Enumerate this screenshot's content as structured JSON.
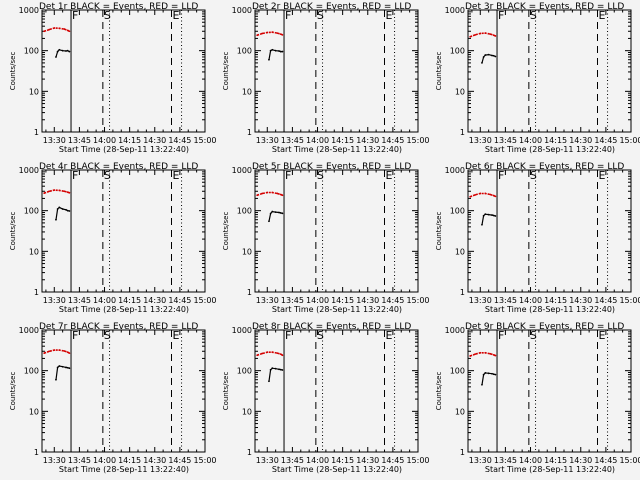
{
  "colors": {
    "background": "#f3f3f3",
    "events": "#000000",
    "lld": "#d40000",
    "axes": "#000000"
  },
  "chart_data": [
    {
      "type": "line",
      "title": "Det 1r BLACK = Events, RED = LLD",
      "xlabel": "Start Time (28-Sep-11 13:22:40)",
      "ylabel": "Counts/sec",
      "yscale": "log",
      "ylim": [
        1,
        1000
      ],
      "xlim": [
        "13:22:40",
        "15:00:00"
      ],
      "x_ticks": [
        "13:30",
        "13:45",
        "14:00",
        "14:15",
        "14:30",
        "14:45",
        "15:00"
      ],
      "y_ticks": [
        "1",
        "10",
        "100",
        "1000"
      ],
      "markers": [
        {
          "label": "F",
          "time": "13:40",
          "style": "solid"
        },
        {
          "label": "S",
          "time": "13:59",
          "style": "dashed"
        },
        {
          "label": "E",
          "time": "14:40",
          "style": "dashed"
        }
      ],
      "dotted_lines": [
        "14:03",
        "14:46"
      ],
      "series": [
        {
          "name": "RED = LLD",
          "color": "#d40000",
          "x": [
            "13:24",
            "13:27",
            "13:30",
            "13:33",
            "13:36",
            "13:38",
            "13:39"
          ],
          "y": [
            300,
            330,
            360,
            355,
            340,
            315,
            300
          ]
        },
        {
          "name": "BLACK = Events",
          "color": "#000000",
          "x": [
            "13:31",
            "13:32",
            "13:33",
            "13:35",
            "13:37",
            "13:38",
            "13:39"
          ],
          "y": [
            70,
            95,
            105,
            100,
            98,
            100,
            95
          ]
        }
      ]
    },
    {
      "type": "line",
      "title": "Det 2r BLACK = Events, RED = LLD",
      "xlabel": "Start Time (28-Sep-11 13:22:40)",
      "ylabel": "Counts/sec",
      "yscale": "log",
      "ylim": [
        1,
        1000
      ],
      "xlim": [
        "13:22:40",
        "15:00:00"
      ],
      "x_ticks": [
        "13:30",
        "13:45",
        "14:00",
        "14:15",
        "14:30",
        "14:45",
        "15:00"
      ],
      "y_ticks": [
        "1",
        "10",
        "100",
        "1000"
      ],
      "markers": [
        {
          "label": "F",
          "time": "13:40",
          "style": "solid"
        },
        {
          "label": "S",
          "time": "13:59",
          "style": "dashed"
        },
        {
          "label": "E",
          "time": "14:40",
          "style": "dashed"
        }
      ],
      "dotted_lines": [
        "14:03",
        "14:46"
      ],
      "series": [
        {
          "name": "RED = LLD",
          "color": "#d40000",
          "x": [
            "13:24",
            "13:27",
            "13:30",
            "13:33",
            "13:36",
            "13:38",
            "13:39"
          ],
          "y": [
            240,
            265,
            280,
            285,
            270,
            255,
            245
          ]
        },
        {
          "name": "BLACK = Events",
          "color": "#000000",
          "x": [
            "13:31",
            "13:32",
            "13:33",
            "13:35",
            "13:37",
            "13:38",
            "13:39"
          ],
          "y": [
            60,
            100,
            105,
            100,
            98,
            95,
            95
          ]
        }
      ]
    },
    {
      "type": "line",
      "title": "Det 3r BLACK = Events, RED = LLD",
      "xlabel": "Start Time (28-Sep-11 13:22:40)",
      "ylabel": "Counts/sec",
      "yscale": "log",
      "ylim": [
        1,
        1000
      ],
      "xlim": [
        "13:22:40",
        "15:00:00"
      ],
      "x_ticks": [
        "13:30",
        "13:45",
        "14:00",
        "14:15",
        "14:30",
        "14:45",
        "15:00"
      ],
      "y_ticks": [
        "1",
        "10",
        "100",
        "1000"
      ],
      "markers": [
        {
          "label": "F",
          "time": "13:40",
          "style": "solid"
        },
        {
          "label": "S",
          "time": "13:59",
          "style": "dashed"
        },
        {
          "label": "E",
          "time": "14:40",
          "style": "dashed"
        }
      ],
      "dotted_lines": [
        "14:03",
        "14:46"
      ],
      "series": [
        {
          "name": "RED = LLD",
          "color": "#d40000",
          "x": [
            "13:24",
            "13:27",
            "13:30",
            "13:33",
            "13:36",
            "13:38",
            "13:39"
          ],
          "y": [
            220,
            245,
            265,
            270,
            255,
            240,
            230
          ]
        },
        {
          "name": "BLACK = Events",
          "color": "#000000",
          "x": [
            "13:31",
            "13:32",
            "13:33",
            "13:35",
            "13:37",
            "13:38",
            "13:39"
          ],
          "y": [
            50,
            70,
            78,
            80,
            76,
            75,
            72
          ]
        }
      ]
    },
    {
      "type": "line",
      "title": "Det 4r BLACK = Events, RED = LLD",
      "xlabel": "Start Time (28-Sep-11 13:22:40)",
      "ylabel": "Counts/sec",
      "yscale": "log",
      "ylim": [
        1,
        1000
      ],
      "xlim": [
        "13:22:40",
        "15:00:00"
      ],
      "x_ticks": [
        "13:30",
        "13:45",
        "14:00",
        "14:15",
        "14:30",
        "14:45",
        "15:00"
      ],
      "y_ticks": [
        "1",
        "10",
        "100",
        "1000"
      ],
      "markers": [
        {
          "label": "F",
          "time": "13:40",
          "style": "solid"
        },
        {
          "label": "S",
          "time": "13:59",
          "style": "dashed"
        },
        {
          "label": "E",
          "time": "14:40",
          "style": "dashed"
        }
      ],
      "dotted_lines": [
        "14:03",
        "14:46"
      ],
      "series": [
        {
          "name": "RED = LLD",
          "color": "#d40000",
          "x": [
            "13:24",
            "13:27",
            "13:30",
            "13:33",
            "13:36",
            "13:38",
            "13:39"
          ],
          "y": [
            270,
            300,
            320,
            315,
            300,
            285,
            275
          ]
        },
        {
          "name": "BLACK = Events",
          "color": "#000000",
          "x": [
            "13:31",
            "13:32",
            "13:33",
            "13:35",
            "13:37",
            "13:38",
            "13:39"
          ],
          "y": [
            60,
            110,
            120,
            110,
            105,
            100,
            98
          ]
        }
      ]
    },
    {
      "type": "line",
      "title": "Det 5r BLACK = Events, RED = LLD",
      "xlabel": "Start Time (28-Sep-11 13:22:40)",
      "ylabel": "Counts/sec",
      "yscale": "log",
      "ylim": [
        1,
        1000
      ],
      "xlim": [
        "13:22:40",
        "15:00:00"
      ],
      "x_ticks": [
        "13:30",
        "13:45",
        "14:00",
        "14:15",
        "14:30",
        "14:45",
        "15:00"
      ],
      "y_ticks": [
        "1",
        "10",
        "100",
        "1000"
      ],
      "markers": [
        {
          "label": "F",
          "time": "13:40",
          "style": "solid"
        },
        {
          "label": "S",
          "time": "13:59",
          "style": "dashed"
        },
        {
          "label": "E",
          "time": "14:40",
          "style": "dashed"
        }
      ],
      "dotted_lines": [
        "14:03",
        "14:46"
      ],
      "series": [
        {
          "name": "RED = LLD",
          "color": "#d40000",
          "x": [
            "13:24",
            "13:27",
            "13:30",
            "13:33",
            "13:36",
            "13:38",
            "13:39"
          ],
          "y": [
            240,
            265,
            280,
            280,
            265,
            250,
            240
          ]
        },
        {
          "name": "BLACK = Events",
          "color": "#000000",
          "x": [
            "13:31",
            "13:32",
            "13:33",
            "13:35",
            "13:37",
            "13:38",
            "13:39"
          ],
          "y": [
            55,
            85,
            95,
            92,
            90,
            88,
            86
          ]
        }
      ]
    },
    {
      "type": "line",
      "title": "Det 6r BLACK = Events, RED = LLD",
      "xlabel": "Start Time (28-Sep-11 13:22:40)",
      "ylabel": "Counts/sec",
      "yscale": "log",
      "ylim": [
        1,
        1000
      ],
      "xlim": [
        "13:22:40",
        "15:00:00"
      ],
      "x_ticks": [
        "13:30",
        "13:45",
        "14:00",
        "14:15",
        "14:30",
        "14:45",
        "15:00"
      ],
      "y_ticks": [
        "1",
        "10",
        "100",
        "1000"
      ],
      "markers": [
        {
          "label": "F",
          "time": "13:40",
          "style": "solid"
        },
        {
          "label": "S",
          "time": "13:59",
          "style": "dashed"
        },
        {
          "label": "E",
          "time": "14:40",
          "style": "dashed"
        }
      ],
      "dotted_lines": [
        "14:03",
        "14:46"
      ],
      "series": [
        {
          "name": "RED = LLD",
          "color": "#d40000",
          "x": [
            "13:24",
            "13:27",
            "13:30",
            "13:33",
            "13:36",
            "13:38",
            "13:39"
          ],
          "y": [
            220,
            245,
            265,
            265,
            250,
            235,
            225
          ]
        },
        {
          "name": "BLACK = Events",
          "color": "#000000",
          "x": [
            "13:31",
            "13:32",
            "13:33",
            "13:35",
            "13:37",
            "13:38",
            "13:39"
          ],
          "y": [
            45,
            75,
            82,
            80,
            78,
            76,
            74
          ]
        }
      ]
    },
    {
      "type": "line",
      "title": "Det 7r BLACK = Events, RED = LLD",
      "xlabel": "Start Time (28-Sep-11 13:22:40)",
      "ylabel": "Counts/sec",
      "yscale": "log",
      "ylim": [
        1,
        1000
      ],
      "xlim": [
        "13:22:40",
        "15:00:00"
      ],
      "x_ticks": [
        "13:30",
        "13:45",
        "14:00",
        "14:15",
        "14:30",
        "14:45",
        "15:00"
      ],
      "y_ticks": [
        "1",
        "10",
        "100",
        "1000"
      ],
      "markers": [
        {
          "label": "F",
          "time": "13:40",
          "style": "solid"
        },
        {
          "label": "S",
          "time": "13:59",
          "style": "dashed"
        },
        {
          "label": "E",
          "time": "14:40",
          "style": "dashed"
        }
      ],
      "dotted_lines": [
        "14:03",
        "14:46"
      ],
      "series": [
        {
          "name": "RED = LLD",
          "color": "#d40000",
          "x": [
            "13:24",
            "13:27",
            "13:30",
            "13:33",
            "13:36",
            "13:38",
            "13:39"
          ],
          "y": [
            270,
            300,
            320,
            320,
            305,
            285,
            270
          ]
        },
        {
          "name": "BLACK = Events",
          "color": "#000000",
          "x": [
            "13:31",
            "13:32",
            "13:33",
            "13:35",
            "13:37",
            "13:38",
            "13:39"
          ],
          "y": [
            60,
            120,
            130,
            125,
            120,
            118,
            115
          ]
        }
      ]
    },
    {
      "type": "line",
      "title": "Det 8r BLACK = Events, RED = LLD",
      "xlabel": "Start Time (28-Sep-11 13:22:40)",
      "ylabel": "Counts/sec",
      "yscale": "log",
      "ylim": [
        1,
        1000
      ],
      "xlim": [
        "13:22:40",
        "15:00:00"
      ],
      "x_ticks": [
        "13:30",
        "13:45",
        "14:00",
        "14:15",
        "14:30",
        "14:45",
        "15:00"
      ],
      "y_ticks": [
        "1",
        "10",
        "100",
        "1000"
      ],
      "markers": [
        {
          "label": "F",
          "time": "13:40",
          "style": "solid"
        },
        {
          "label": "S",
          "time": "13:59",
          "style": "dashed"
        },
        {
          "label": "E",
          "time": "14:40",
          "style": "dashed"
        }
      ],
      "dotted_lines": [
        "14:03",
        "14:46"
      ],
      "series": [
        {
          "name": "RED = LLD",
          "color": "#d40000",
          "x": [
            "13:24",
            "13:27",
            "13:30",
            "13:33",
            "13:36",
            "13:38",
            "13:39"
          ],
          "y": [
            240,
            265,
            285,
            285,
            270,
            255,
            240
          ]
        },
        {
          "name": "BLACK = Events",
          "color": "#000000",
          "x": [
            "13:31",
            "13:32",
            "13:33",
            "13:35",
            "13:37",
            "13:38",
            "13:39"
          ],
          "y": [
            55,
            105,
            115,
            112,
            108,
            106,
            104
          ]
        }
      ]
    },
    {
      "type": "line",
      "title": "Det 9r BLACK = Events, RED = LLD",
      "xlabel": "Start Time (28-Sep-11 13:22:40)",
      "ylabel": "Counts/sec",
      "yscale": "log",
      "ylim": [
        1,
        1000
      ],
      "xlim": [
        "13:22:40",
        "15:00:00"
      ],
      "x_ticks": [
        "13:30",
        "13:45",
        "14:00",
        "14:15",
        "14:30",
        "14:45",
        "15:00"
      ],
      "y_ticks": [
        "1",
        "10",
        "100",
        "1000"
      ],
      "markers": [
        {
          "label": "F",
          "time": "13:40",
          "style": "solid"
        },
        {
          "label": "S",
          "time": "13:59",
          "style": "dashed"
        },
        {
          "label": "E",
          "time": "14:40",
          "style": "dashed"
        }
      ],
      "dotted_lines": [
        "14:03",
        "14:46"
      ],
      "series": [
        {
          "name": "RED = LLD",
          "color": "#d40000",
          "x": [
            "13:24",
            "13:27",
            "13:30",
            "13:33",
            "13:36",
            "13:38",
            "13:39"
          ],
          "y": [
            230,
            255,
            275,
            275,
            260,
            245,
            235
          ]
        },
        {
          "name": "BLACK = Events",
          "color": "#000000",
          "x": [
            "13:31",
            "13:32",
            "13:33",
            "13:35",
            "13:37",
            "13:38",
            "13:39"
          ],
          "y": [
            45,
            80,
            88,
            86,
            84,
            82,
            80
          ]
        }
      ]
    }
  ]
}
